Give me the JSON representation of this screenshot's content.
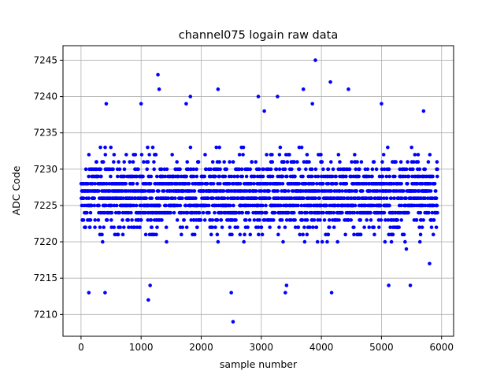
{
  "chart_data": {
    "type": "scatter",
    "title": "channel075 logain raw data",
    "xlabel": "sample number",
    "ylabel": "ADC Code",
    "xlim": [
      -300,
      6200
    ],
    "ylim": [
      7207,
      7247
    ],
    "x_ticks": [
      0,
      1000,
      2000,
      3000,
      4000,
      5000,
      6000
    ],
    "y_ticks": [
      7210,
      7215,
      7220,
      7225,
      7230,
      7235,
      7240,
      7245
    ],
    "grid": true,
    "marker_color": "#0000ff",
    "series": [
      {
        "x_range": [
          0,
          5930
        ],
        "sample_count": 5931,
        "dense_band": [
          7217,
          7235
        ],
        "outliers": [
          {
            "x": 1280,
            "y": 7243
          },
          {
            "x": 1300,
            "y": 7241
          },
          {
            "x": 1820,
            "y": 7240
          },
          {
            "x": 2280,
            "y": 7241
          },
          {
            "x": 2500,
            "y": 7213
          },
          {
            "x": 2530,
            "y": 7209
          },
          {
            "x": 2950,
            "y": 7240
          },
          {
            "x": 3270,
            "y": 7240
          },
          {
            "x": 3700,
            "y": 7241
          },
          {
            "x": 3900,
            "y": 7245
          },
          {
            "x": 4150,
            "y": 7242
          },
          {
            "x": 4170,
            "y": 7213
          },
          {
            "x": 4450,
            "y": 7241
          },
          {
            "x": 1120,
            "y": 7212
          },
          {
            "x": 1150,
            "y": 7214
          },
          {
            "x": 3400,
            "y": 7213
          },
          {
            "x": 3420,
            "y": 7214
          },
          {
            "x": 130,
            "y": 7213
          },
          {
            "x": 400,
            "y": 7213
          },
          {
            "x": 5120,
            "y": 7214
          },
          {
            "x": 5480,
            "y": 7214
          },
          {
            "x": 5800,
            "y": 7217
          },
          {
            "x": 420,
            "y": 7239
          },
          {
            "x": 1000,
            "y": 7239
          },
          {
            "x": 1750,
            "y": 7239
          },
          {
            "x": 3050,
            "y": 7238
          },
          {
            "x": 3850,
            "y": 7239
          },
          {
            "x": 5000,
            "y": 7239
          },
          {
            "x": 5700,
            "y": 7238
          }
        ]
      }
    ]
  }
}
